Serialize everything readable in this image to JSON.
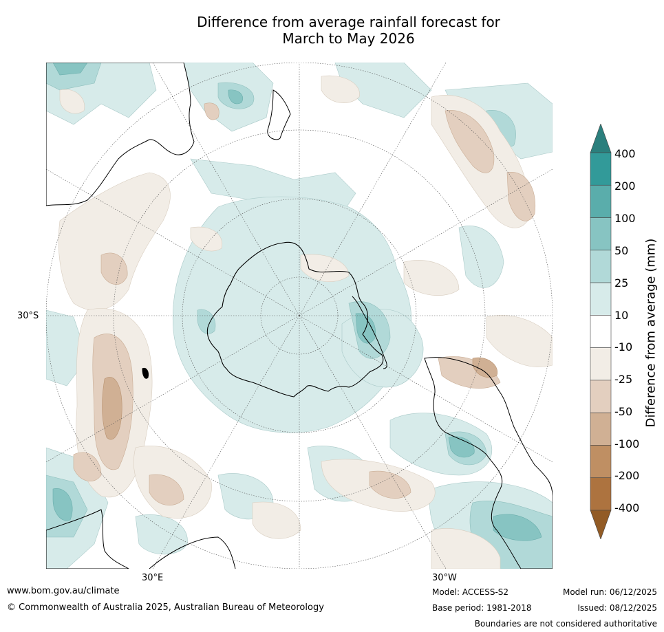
{
  "title": {
    "line1": "Difference from average rainfall forecast for",
    "line2": "March to May 2026"
  },
  "map": {
    "projection": "south polar stereographic",
    "latitude_label": "30°S",
    "longitude_labels": [
      "30°E",
      "30°W"
    ]
  },
  "colorbar": {
    "title": "Difference from average (mm)",
    "tick_labels": [
      "400",
      "200",
      "100",
      "50",
      "25",
      "10",
      "-10",
      "-25",
      "-50",
      "-100",
      "-200",
      "-400"
    ],
    "bin_colors": [
      "#2b7f7d",
      "#329a99",
      "#5aadab",
      "#87c4c2",
      "#b1d9d8",
      "#d7ebea",
      "#ffffff",
      "#f2ede6",
      "#e3cfbf",
      "#d0b094",
      "#bf8f63",
      "#ad733f",
      "#925b25"
    ]
  },
  "footer": {
    "website": "www.bom.gov.au/climate",
    "copyright": "© Commonwealth of Australia 2025, Australian Bureau of Meteorology",
    "model": "Model: ACCESS-S2",
    "base_period": "Base period: 1981-2018",
    "model_run": "Model run: 06/12/2025",
    "issued": "Issued: 08/12/2025",
    "disclaimer": "Boundaries are not considered authoritative"
  }
}
